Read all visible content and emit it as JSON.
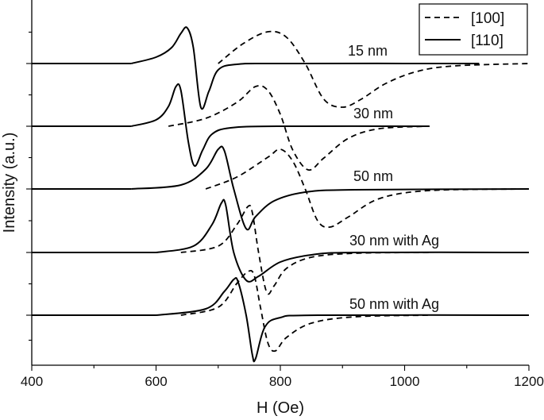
{
  "chart_data": {
    "type": "line",
    "xlabel": "H (Oe)",
    "ylabel": "Intensity (a.u.)",
    "xlim": [
      400,
      1200
    ],
    "x_ticks": [
      400,
      600,
      800,
      1000,
      1200
    ],
    "legend": {
      "position": "top-right",
      "entries": [
        {
          "label": "[100]",
          "style": "dashed"
        },
        {
          "label": "[110]",
          "style": "solid"
        }
      ]
    },
    "grid": false,
    "samples": [
      {
        "label": "15 nm",
        "series": [
          {
            "orientation": "[100]",
            "x": [
              700,
              740,
              780,
              810,
              840,
              870,
              900,
              930,
              970,
              1020,
              1080,
              1200
            ],
            "y": [
              0.0,
              0.25,
              0.4,
              0.33,
              0.0,
              -0.45,
              -0.55,
              -0.45,
              -0.25,
              -0.1,
              -0.03,
              0.0
            ]
          },
          {
            "orientation": "[110]",
            "x": [
              560,
              600,
              625,
              640,
              650,
              660,
              672,
              685,
              700,
              730,
              800,
              1120
            ],
            "y": [
              0.0,
              0.08,
              0.2,
              0.38,
              0.45,
              0.2,
              -0.55,
              -0.35,
              -0.08,
              -0.01,
              0.0,
              0.0
            ]
          }
        ]
      },
      {
        "label": "30 nm",
        "series": [
          {
            "orientation": "[100]",
            "x": [
              620,
              680,
              730,
              760,
              780,
              800,
              820,
              845,
              870,
              910,
              960,
              1040
            ],
            "y": [
              0.0,
              0.1,
              0.3,
              0.5,
              0.45,
              0.15,
              -0.3,
              -0.55,
              -0.4,
              -0.15,
              -0.03,
              0.0
            ]
          },
          {
            "orientation": "[110]",
            "x": [
              560,
              600,
              620,
              632,
              640,
              652,
              662,
              675,
              690,
              720,
              800,
              1040
            ],
            "y": [
              0.0,
              0.08,
              0.25,
              0.5,
              0.45,
              -0.2,
              -0.5,
              -0.3,
              -0.1,
              -0.02,
              0.0,
              0.0
            ]
          }
        ]
      },
      {
        "label": "50 nm",
        "series": [
          {
            "orientation": "[100]",
            "x": [
              680,
              730,
              780,
              800,
              820,
              840,
              860,
              880,
              910,
              960,
              1040,
              1200
            ],
            "y": [
              0.0,
              0.15,
              0.4,
              0.5,
              0.35,
              0.0,
              -0.4,
              -0.48,
              -0.35,
              -0.12,
              -0.02,
              0.0
            ]
          },
          {
            "orientation": "[110]",
            "x": [
              560,
              640,
              680,
              700,
              710,
              725,
              745,
              760,
              790,
              840,
              920,
              1200
            ],
            "y": [
              0.0,
              0.05,
              0.25,
              0.5,
              0.48,
              0.0,
              -0.5,
              -0.35,
              -0.15,
              -0.04,
              -0.01,
              0.0
            ]
          }
        ]
      },
      {
        "label": "30 nm with Ag",
        "series": [
          {
            "orientation": "[100]",
            "x": [
              640,
              700,
              730,
              748,
              755,
              765,
              778,
              790,
              810,
              850,
              920,
              1040
            ],
            "y": [
              0.0,
              0.08,
              0.35,
              0.58,
              0.5,
              0.0,
              -0.5,
              -0.42,
              -0.2,
              -0.06,
              -0.01,
              0.0
            ]
          },
          {
            "orientation": "[110]",
            "x": [
              600,
              660,
              690,
              705,
              712,
              725,
              745,
              765,
              800,
              850,
              920,
              1200
            ],
            "y": [
              0.0,
              0.08,
              0.35,
              0.62,
              0.6,
              0.0,
              -0.35,
              -0.3,
              -0.12,
              -0.03,
              0.0,
              0.0
            ]
          }
        ]
      },
      {
        "label": "50 nm with Ag",
        "series": [
          {
            "orientation": "[100]",
            "x": [
              640,
              700,
              730,
              748,
              758,
              768,
              780,
              792,
              810,
              850,
              920,
              1040
            ],
            "y": [
              0.0,
              0.1,
              0.4,
              0.55,
              0.5,
              0.1,
              -0.35,
              -0.45,
              -0.28,
              -0.1,
              -0.02,
              0.0
            ]
          },
          {
            "orientation": "[110]",
            "x": [
              600,
              680,
              710,
              725,
              732,
              745,
              755,
              760,
              775,
              800,
              860,
              1200
            ],
            "y": [
              0.0,
              0.08,
              0.3,
              0.45,
              0.42,
              0.0,
              -0.5,
              -0.55,
              -0.15,
              -0.03,
              0.0,
              0.0
            ]
          }
        ]
      }
    ]
  }
}
